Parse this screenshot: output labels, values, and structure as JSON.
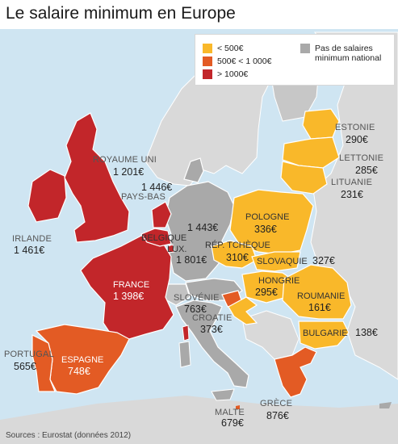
{
  "title": "Le salaire minimum en Europe",
  "source": "Sources : Eurostat (données 2012)",
  "colors": {
    "under_500": "#f9b82a",
    "between_500_1000": "#e35b24",
    "over_1000": "#c2262a",
    "none": "#a9a9a9",
    "other_land": "#d9d9d9",
    "sea": "#cfe5f2"
  },
  "legend": {
    "under_500": "< 500€",
    "between_500_1000": "500€ < 1 000€",
    "over_1000": "> 1000€",
    "none": "Pas de salaires minimum national"
  },
  "countries": {
    "estonia": {
      "name": "ESTONIE",
      "value": "290€"
    },
    "latvia": {
      "name": "LETTONIE",
      "value": "285€"
    },
    "lithuania": {
      "name": "LITUANIE",
      "value": "231€"
    },
    "uk": {
      "name": "ROYAUME UNI",
      "value": "1 201€"
    },
    "netherlands": {
      "name": "PAYS-BAS",
      "value": "1 446€"
    },
    "ireland": {
      "name": "IRLANDE",
      "value": "1 461€"
    },
    "belgium": {
      "name": "BELGIQUE",
      "value": "1 443€"
    },
    "luxembourg": {
      "name": "LUX.",
      "value": "1 801€"
    },
    "poland": {
      "name": "POLOGNE",
      "value": "336€"
    },
    "czech": {
      "name": "RÉP. TCHÈQUE",
      "value": "310€"
    },
    "slovakia": {
      "name": "SLOVAQUIE",
      "value": "327€"
    },
    "hungary": {
      "name": "HONGRIE",
      "value": "295€"
    },
    "france": {
      "name": "FRANCE",
      "value": "1 398€"
    },
    "slovenia": {
      "name": "SLOVÉNIE",
      "value": "763€"
    },
    "croatia": {
      "name": "CROATIE",
      "value": "373€"
    },
    "romania": {
      "name": "ROUMANIE",
      "value": "161€"
    },
    "bulgaria": {
      "name": "BULGARIE",
      "value": "138€"
    },
    "portugal": {
      "name": "PORTUGAL",
      "value": "565€"
    },
    "spain": {
      "name": "ESPAGNE",
      "value": "748€"
    },
    "greece": {
      "name": "GRÈCE",
      "value": "876€"
    },
    "malta": {
      "name": "MALTE",
      "value": "679€"
    }
  }
}
